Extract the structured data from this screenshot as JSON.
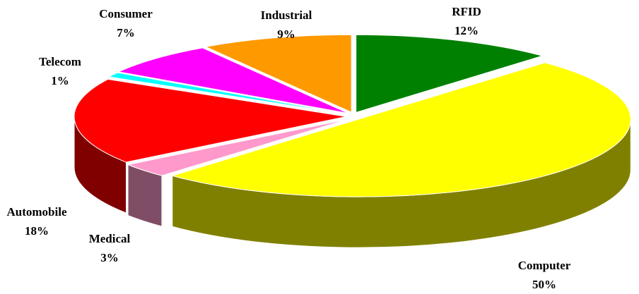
{
  "chart_data": {
    "type": "pie",
    "categories": [
      "RFID",
      "Computer",
      "Medical",
      "Automobile",
      "Telecom",
      "Consumer",
      "Industrial"
    ],
    "values": [
      12,
      50,
      3,
      18,
      1,
      7,
      9
    ],
    "value_labels": [
      "12%",
      "50%",
      "3%",
      "18%",
      "1%",
      "7%",
      "9%"
    ],
    "colors": [
      "#008000",
      "#ffff00",
      "#ff99cc",
      "#ff0000",
      "#00ffff",
      "#ff00ff",
      "#ff9900"
    ]
  }
}
